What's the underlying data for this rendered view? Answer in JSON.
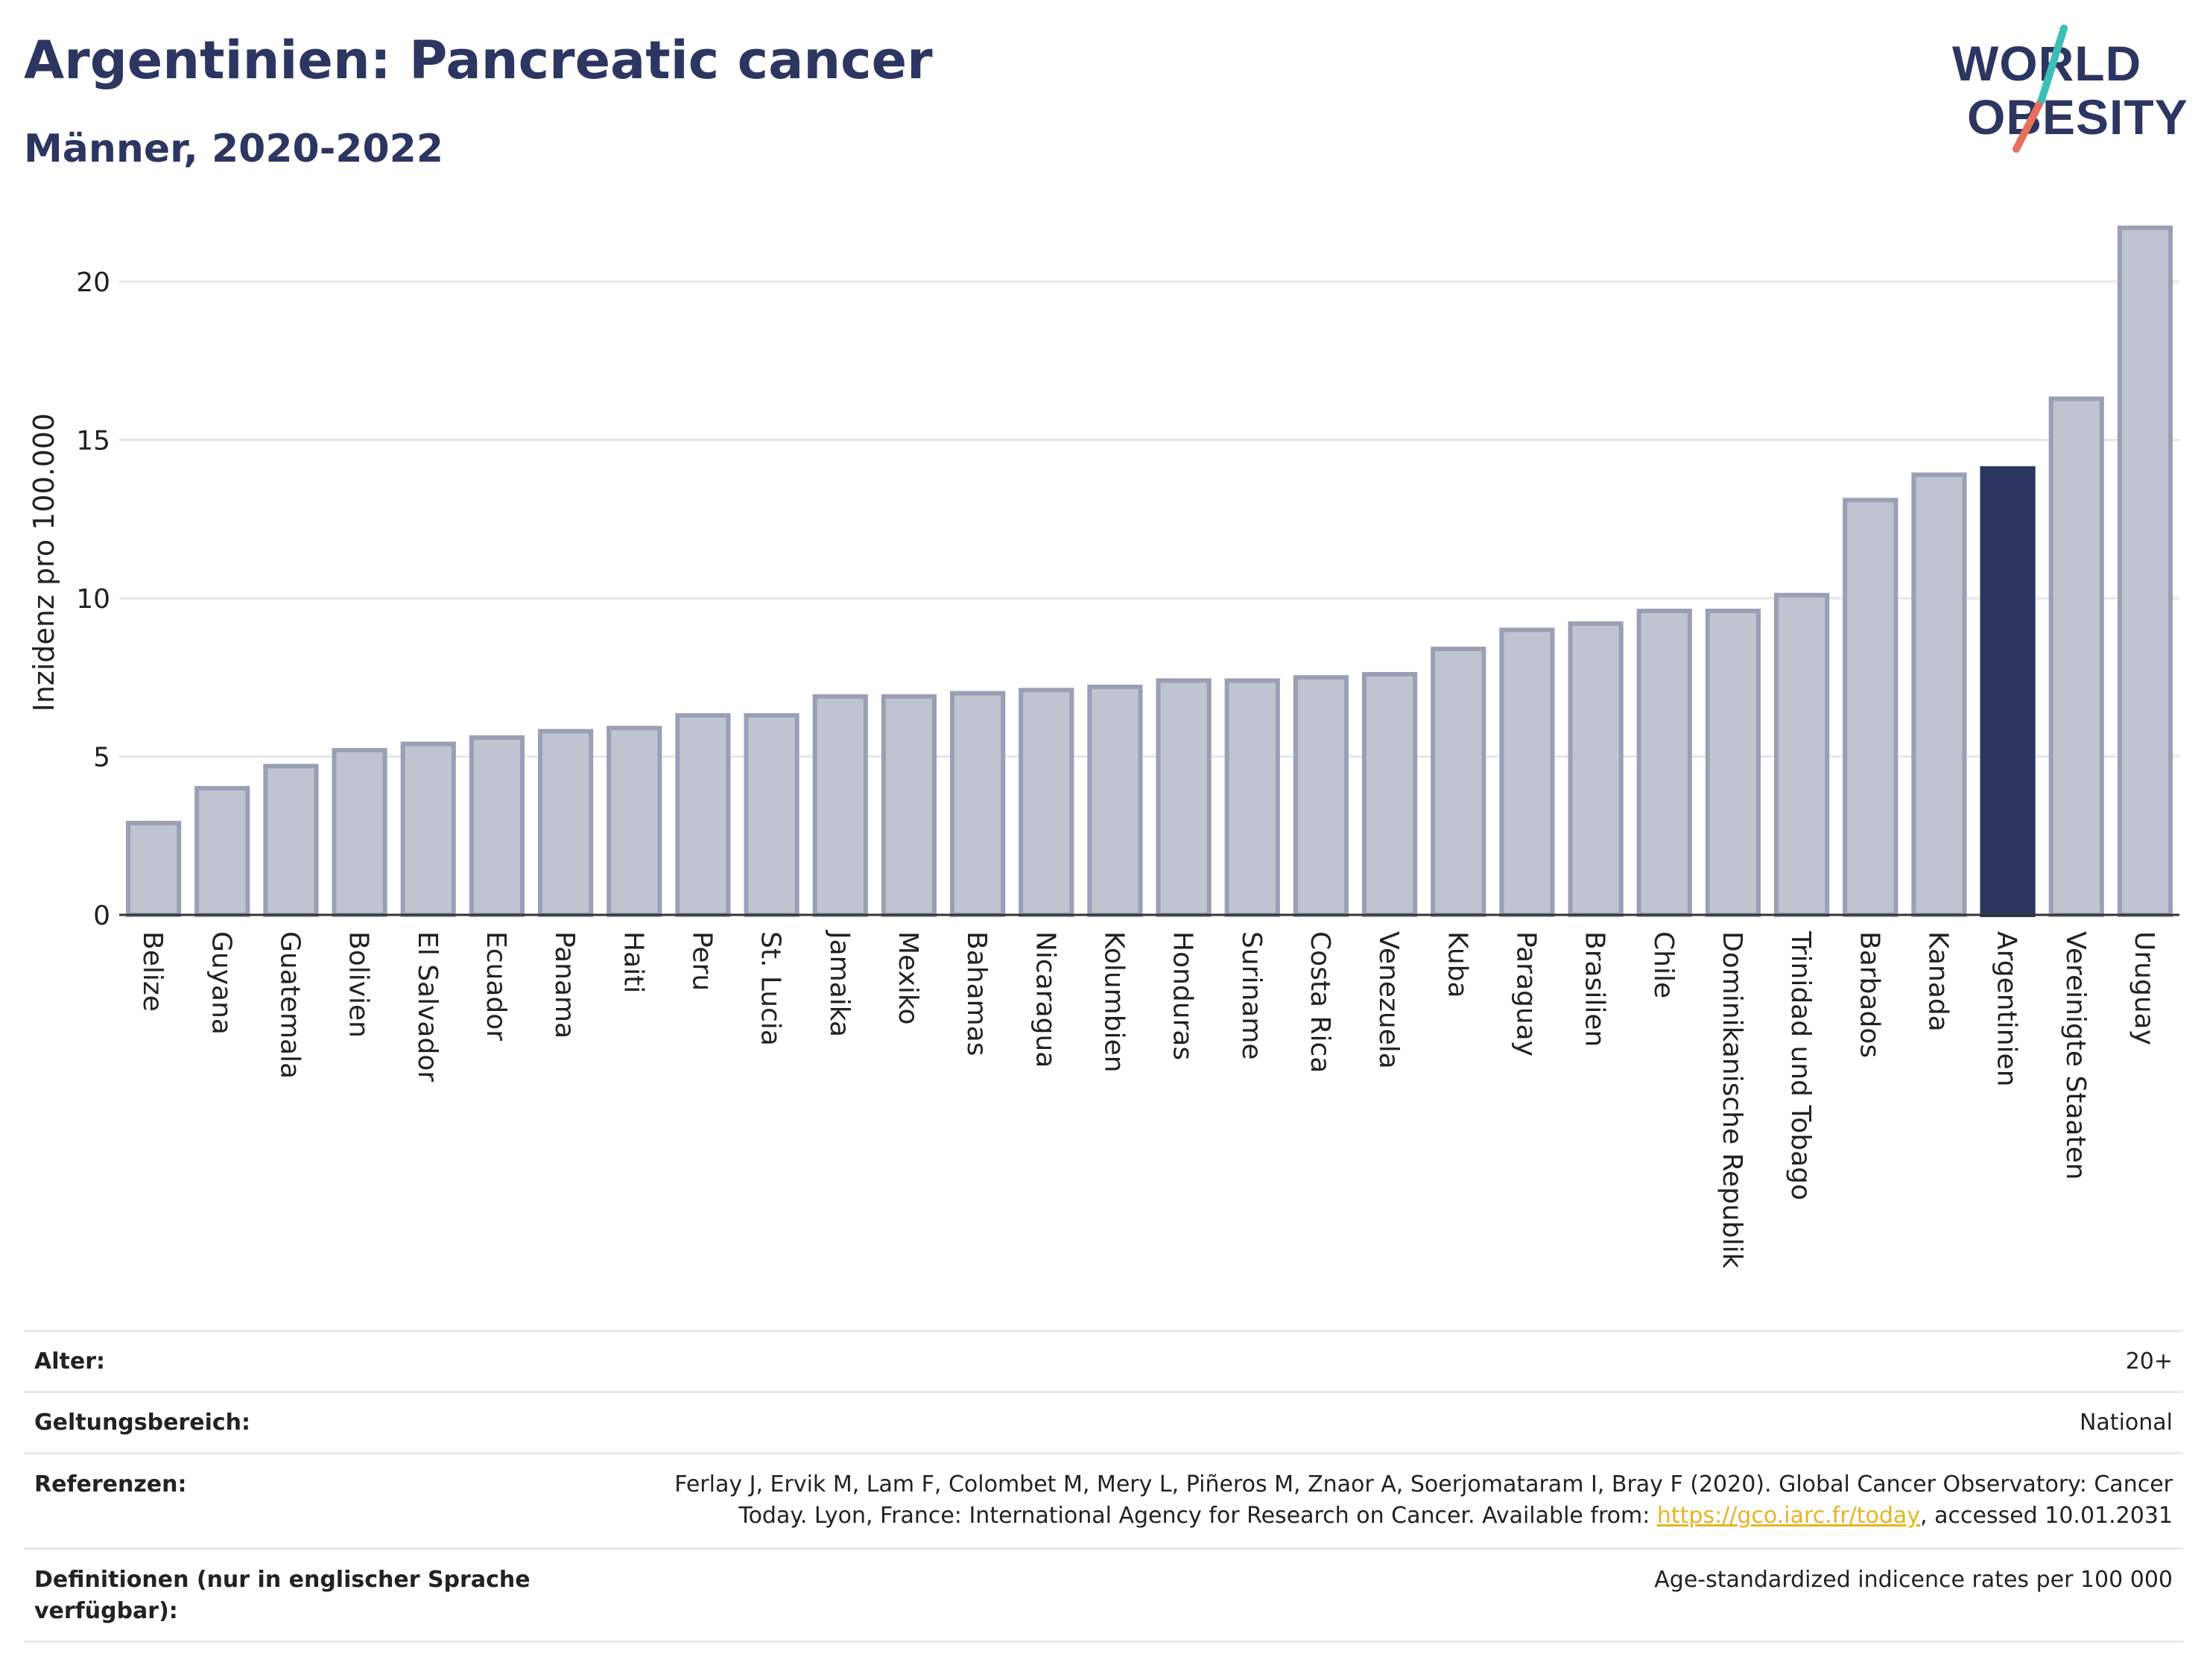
{
  "title": "Argentinien: Pancreatic cancer",
  "subtitle": "Männer, 2020-2022",
  "logo": {
    "line1": "WORLD",
    "line2": "OBESITY"
  },
  "colors": {
    "bar": "#c0c3d0",
    "bar_stroke": "#9a9fb5",
    "highlight": "#2d3561",
    "title": "#2d3561",
    "link": "#e6b422"
  },
  "chart_data": {
    "type": "bar",
    "ylabel": "Inzidenz pro 100.000",
    "ylim": [
      0,
      22
    ],
    "yticks": [
      0,
      5,
      10,
      15,
      20
    ],
    "grid": true,
    "highlight": "Argentinien",
    "categories": [
      "Belize",
      "Guyana",
      "Guatemala",
      "Bolivien",
      "El Salvador",
      "Ecuador",
      "Panama",
      "Haiti",
      "Peru",
      "St. Lucia",
      "Jamaika",
      "Mexiko",
      "Bahamas",
      "Nicaragua",
      "Kolumbien",
      "Honduras",
      "Suriname",
      "Costa Rica",
      "Venezuela",
      "Kuba",
      "Paraguay",
      "Brasilien",
      "Chile",
      "Dominikanische Republik",
      "Trinidad und Tobago",
      "Barbados",
      "Kanada",
      "Argentinien",
      "Vereinigte Staaten",
      "Uruguay"
    ],
    "values": [
      2.9,
      4.0,
      4.7,
      5.2,
      5.4,
      5.6,
      5.8,
      5.9,
      6.3,
      6.3,
      6.9,
      6.9,
      7.0,
      7.1,
      7.2,
      7.4,
      7.4,
      7.5,
      7.6,
      8.4,
      9.0,
      9.2,
      9.6,
      9.6,
      10.1,
      13.1,
      13.9,
      14.1,
      16.3,
      21.7
    ]
  },
  "meta": {
    "alter_label": "Alter:",
    "alter_value": "20+",
    "scope_label": "Geltungsbereich:",
    "scope_value": "National",
    "ref_label": "Referenzen:",
    "ref_text_1": "Ferlay J, Ervik M, Lam F, Colombet M, Mery L, Piñeros M, Znaor A, Soerjomataram I, Bray F (2020). Global Cancer Observatory: Cancer Today. Lyon, France: International Agency for Research on Cancer. Available from: ",
    "ref_link": "https://gco.iarc.fr/today",
    "ref_text_2": ", accessed 10.01.2031",
    "def_label": "Definitionen (nur in englischer Sprache verfügbar):",
    "def_value": "Age-standardized indicence rates per 100 000"
  }
}
